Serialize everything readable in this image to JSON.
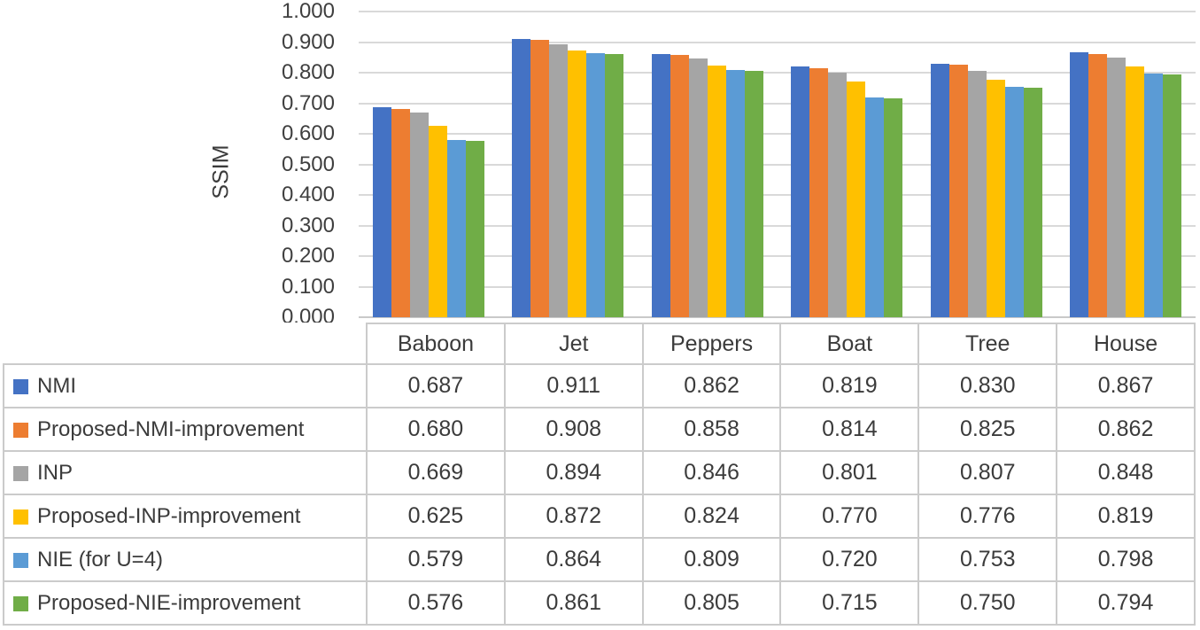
{
  "figure": {
    "background": "#ffffff",
    "text_color": "#3b3b3b",
    "gridline_color": "#d9d9d9",
    "table_border_color": "#cbcbcb"
  },
  "chart_data": {
    "type": "bar",
    "title": "",
    "xlabel": "",
    "ylabel": "SSIM",
    "ylim": [
      0,
      1
    ],
    "ytick_step": 0.1,
    "ytick_labels": [
      "1.000",
      "0.900",
      "0.800",
      "0.700",
      "0.600",
      "0.500",
      "0.400",
      "0.300",
      "0.200",
      "0.100",
      "0.000"
    ],
    "grid": true,
    "legend_position": "table-rows-left",
    "value_format": "3-decimals",
    "categories": [
      "Baboon",
      "Jet",
      "Peppers",
      "Boat",
      "Tree",
      "House"
    ],
    "series": [
      {
        "name": "NMI",
        "color": "#4472C4",
        "values": [
          0.687,
          0.911,
          0.862,
          0.819,
          0.83,
          0.867
        ]
      },
      {
        "name": "Proposed-NMI-improvement",
        "color": "#ED7D31",
        "values": [
          0.68,
          0.908,
          0.858,
          0.814,
          0.825,
          0.862
        ]
      },
      {
        "name": "INP",
        "color": "#A5A5A5",
        "values": [
          0.669,
          0.894,
          0.846,
          0.801,
          0.807,
          0.848
        ]
      },
      {
        "name": "Proposed-INP-improvement",
        "color": "#FFC000",
        "values": [
          0.625,
          0.872,
          0.824,
          0.77,
          0.776,
          0.819
        ]
      },
      {
        "name": "NIE (for U=4)",
        "color": "#5B9BD5",
        "values": [
          0.579,
          0.864,
          0.809,
          0.72,
          0.753,
          0.798
        ]
      },
      {
        "name": "Proposed-NIE-improvement",
        "color": "#70AD47",
        "values": [
          0.576,
          0.861,
          0.805,
          0.715,
          0.75,
          0.794
        ]
      }
    ]
  }
}
